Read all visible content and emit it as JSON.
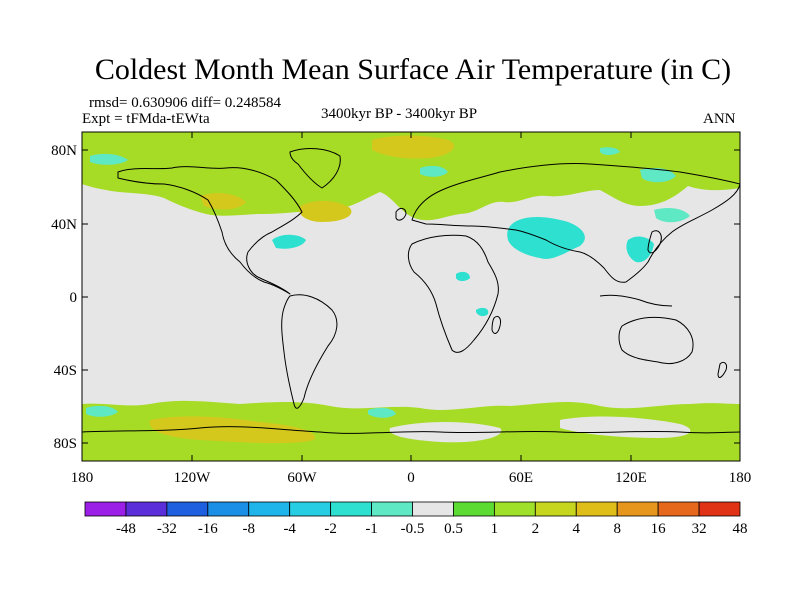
{
  "title": "Coldest Month Mean Surface Air Temperature (in C)",
  "stats": "rmsd= 0.630906 diff= 0.248584",
  "experiment": "Expt = tFMda-tEWta",
  "period": "3400kyr BP - 3400kyr BP",
  "season": "ANN",
  "lat_ticks": [
    "80N",
    "40N",
    "0",
    "40S",
    "80S"
  ],
  "lon_ticks": [
    "180",
    "120W",
    "60W",
    "0",
    "60E",
    "120E",
    "180"
  ],
  "colorbar": {
    "labels": [
      "-48",
      "-32",
      "-16",
      "-8",
      "-4",
      "-2",
      "-1",
      "-0.5",
      "0.5",
      "1",
      "2",
      "4",
      "8",
      "16",
      "32",
      "48"
    ],
    "colors": [
      "#9b1fe6",
      "#5a2fd9",
      "#1e5fe0",
      "#1b8fe6",
      "#1fb5ea",
      "#27cde2",
      "#2ee0d0",
      "#5ee8c4",
      "#e6e6e6",
      "#5cdc33",
      "#9ee02a",
      "#c6d61e",
      "#e0be1a",
      "#e6961c",
      "#e6681c",
      "#e03214"
    ]
  },
  "colors": {
    "land_outline": "#000000",
    "zero_band": "#e6e6e6",
    "positive": "#a6dc26",
    "warm": "#d4c81c",
    "negative": "#2ee0d0"
  }
}
